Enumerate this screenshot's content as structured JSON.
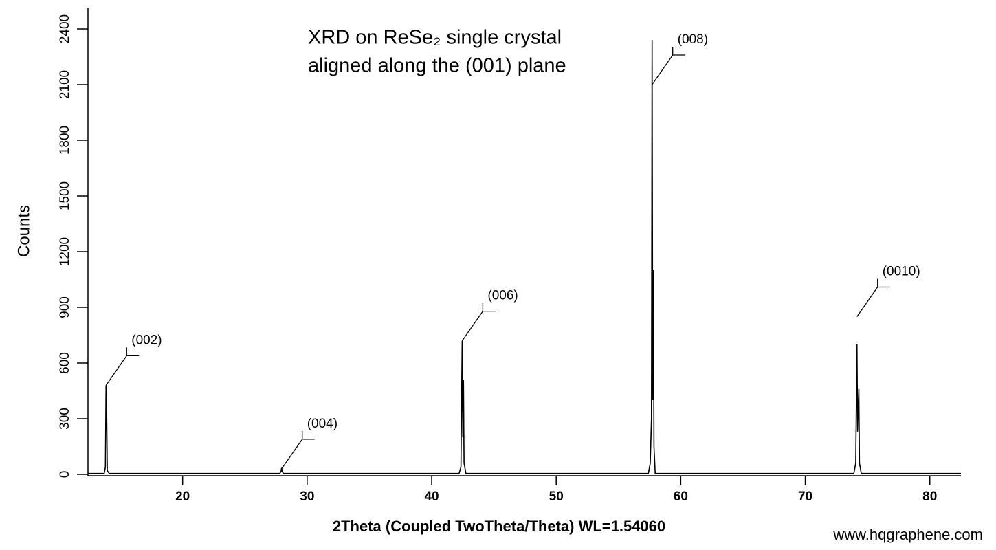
{
  "chart_data": {
    "type": "line",
    "title": [
      "XRD on ReSe₂ single crystal",
      "aligned along the (001) plane"
    ],
    "xlabel": "2Theta (Coupled TwoTheta/Theta) WL=1.54060",
    "ylabel": "Counts",
    "watermark": "www.hqgraphene.com",
    "xlim": [
      12.4,
      82.5
    ],
    "xticks": [
      20,
      30,
      40,
      50,
      60,
      70,
      80
    ],
    "ylim": [
      0,
      2500
    ],
    "yticks": [
      0,
      300,
      600,
      900,
      1200,
      1500,
      1800,
      2100,
      2400
    ],
    "series": [
      {
        "color": "#000000",
        "x": [
          12.4,
          13.7,
          13.8,
          13.85,
          13.9,
          13.95,
          14.1,
          27.8,
          27.9,
          27.95,
          28.0,
          28.1,
          42.2,
          42.35,
          42.45,
          42.5,
          42.55,
          42.6,
          42.75,
          57.4,
          57.55,
          57.65,
          57.7,
          57.75,
          57.8,
          57.85,
          57.95,
          73.9,
          74.05,
          74.15,
          74.2,
          74.3,
          74.35,
          74.5,
          82.5
        ],
        "values": [
          5,
          5,
          40,
          480,
          330,
          20,
          5,
          5,
          15,
          35,
          15,
          5,
          5,
          40,
          720,
          200,
          510,
          60,
          5,
          5,
          60,
          300,
          2340,
          400,
          1100,
          150,
          5,
          5,
          60,
          700,
          230,
          460,
          60,
          5,
          5
        ]
      }
    ],
    "annotations": [
      {
        "text": "(002)",
        "x": 13.85,
        "y": 480
      },
      {
        "text": "(004)",
        "x": 27.95,
        "y": 30
      },
      {
        "text": "(006)",
        "x": 42.45,
        "y": 720
      },
      {
        "text": "(008)",
        "x": 57.7,
        "y": 2100
      },
      {
        "text": "(0010)",
        "x": 74.15,
        "y": 850
      }
    ]
  }
}
